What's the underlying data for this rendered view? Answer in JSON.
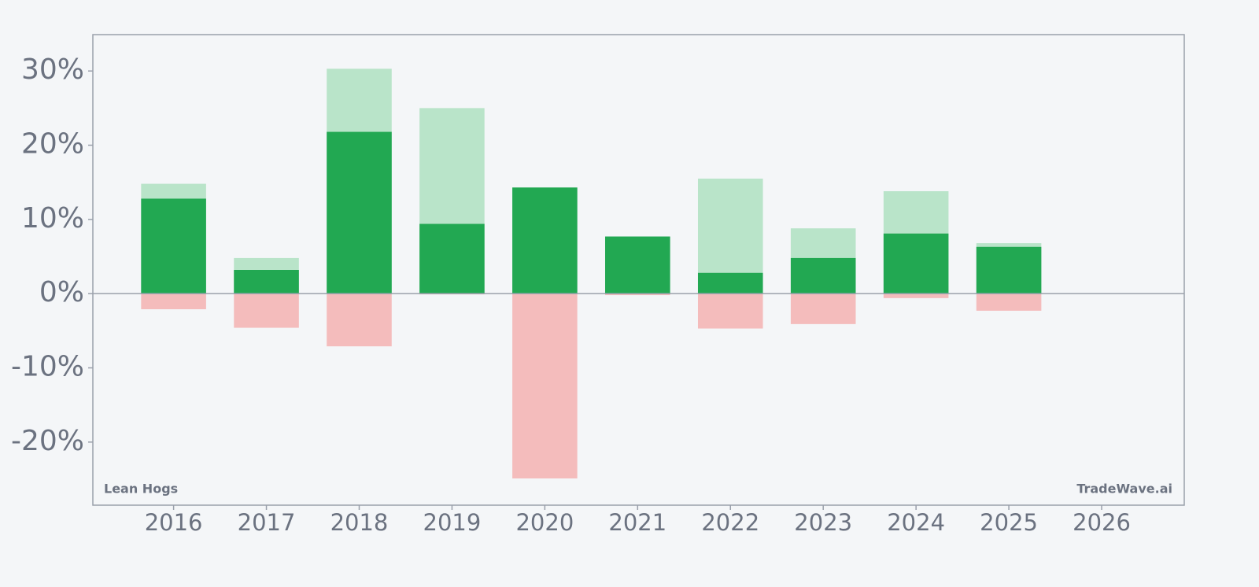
{
  "chart_data": {
    "type": "bar",
    "x": [
      2016,
      2017,
      2018,
      2019,
      2020,
      2021,
      2022,
      2023,
      2024,
      2025,
      2026
    ],
    "xlim": [
      2015.13,
      2026.89
    ],
    "xticks": [
      2016,
      2017,
      2018,
      2019,
      2020,
      2021,
      2022,
      2023,
      2024,
      2025,
      2026
    ],
    "series": [
      {
        "color": "#b9e4c9",
        "values": [
          14.8,
          4.8,
          30.3,
          25.0,
          14.3,
          7.7,
          15.5,
          8.8,
          13.8,
          6.8,
          null
        ]
      },
      {
        "color": "#f4bcbc",
        "values": [
          -2.1,
          -4.6,
          -7.1,
          -0.1,
          -24.9,
          -0.2,
          -4.7,
          -4.1,
          -0.6,
          -2.3,
          null
        ]
      },
      {
        "color": "#22a852",
        "values": [
          12.8,
          3.2,
          21.8,
          9.4,
          14.3,
          7.7,
          2.8,
          4.8,
          8.1,
          6.3,
          null
        ]
      }
    ],
    "ylim": [
      -28.5,
      34.9
    ],
    "yticks": [
      {
        "value": -20,
        "label": "-20%"
      },
      {
        "value": -10,
        "label": "-10%"
      },
      {
        "value": 0,
        "label": "0%"
      },
      {
        "value": 10,
        "label": "10%"
      },
      {
        "value": 20,
        "label": "20%"
      },
      {
        "value": 30,
        "label": "30%"
      }
    ],
    "grid": false,
    "annotations": [
      "Lean Hogs",
      "TradeWave.ai"
    ]
  }
}
